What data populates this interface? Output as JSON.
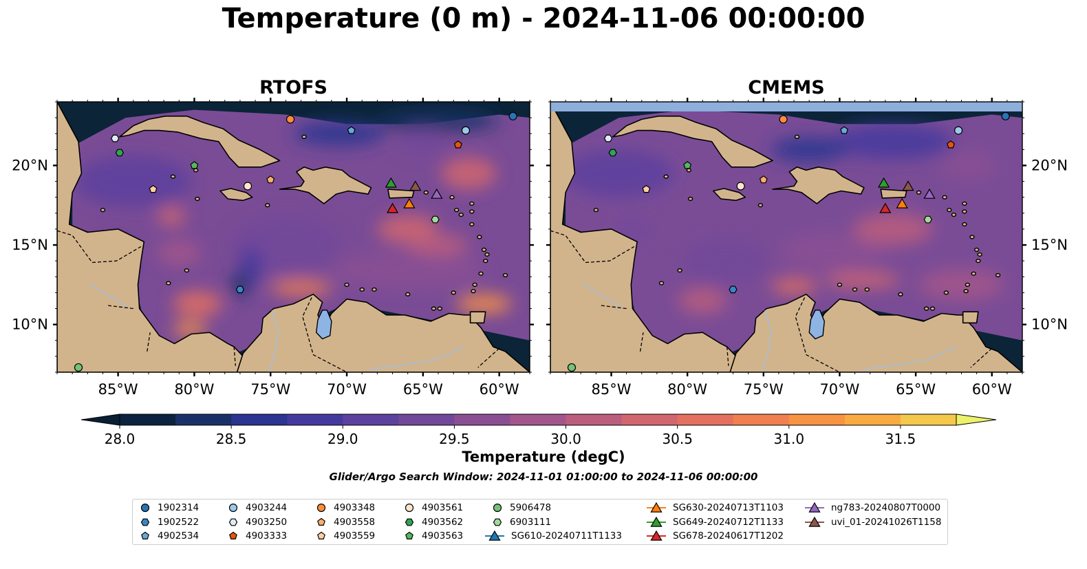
{
  "title": "Temperature (0 m) - 2024-11-06 00:00:00",
  "panels": [
    {
      "name": "RTOFS",
      "variant": "rtofs"
    },
    {
      "name": "CMEMS",
      "variant": "cmems"
    }
  ],
  "map_extent": {
    "lon": [
      -89,
      -58
    ],
    "lat": [
      7,
      24
    ]
  },
  "lon_ticks": [
    {
      "value": -85,
      "label": "85°W"
    },
    {
      "value": -80,
      "label": "80°W"
    },
    {
      "value": -75,
      "label": "75°W"
    },
    {
      "value": -70,
      "label": "70°W"
    },
    {
      "value": -65,
      "label": "65°W"
    },
    {
      "value": -60,
      "label": "60°W"
    }
  ],
  "lat_ticks": [
    {
      "value": 10,
      "label": "10°N"
    },
    {
      "value": 15,
      "label": "15°N"
    },
    {
      "value": 20,
      "label": "20°N"
    }
  ],
  "colorbar": {
    "label": "Temperature (degC)",
    "min": 28.0,
    "max": 31.5,
    "step": 0.25,
    "ticks": [
      "28.0",
      "28.5",
      "29.0",
      "29.5",
      "30.0",
      "30.5",
      "31.0",
      "31.5"
    ],
    "colors": [
      "#0b2340",
      "#1a3168",
      "#2c3590",
      "#443a9e",
      "#5c419e",
      "#72489a",
      "#8a4f93",
      "#a3568a",
      "#bb5e7d",
      "#d1666f",
      "#e4705f",
      "#f17f4f",
      "#f79342",
      "#f8ab3f",
      "#f4c84b"
    ],
    "under_color": "#0a1f33",
    "over_color": "#ecf26a"
  },
  "search_window": "Glider/Argo Search Window: 2024-11-01 01:00:00 to 2024-11-06 00:00:00",
  "colors": {
    "land": "#d2b48c",
    "ocean_deep": "#0b2438",
    "lake": "#8eb4e3",
    "river": "#a7bdd6",
    "no_data": "#8eaedc"
  },
  "floats": [
    {
      "id": "1902314",
      "marker": "circle",
      "color": "#2775b6",
      "lon": -59.1,
      "lat": 23.1
    },
    {
      "id": "1902522",
      "marker": "hexagon",
      "color": "#3a86c4",
      "lon": -77.0,
      "lat": 12.2
    },
    {
      "id": "4902534",
      "marker": "pentagon",
      "color": "#6aa8d8",
      "lon": -69.7,
      "lat": 22.2
    },
    {
      "id": "4903244",
      "marker": "circle",
      "color": "#9cc9e8",
      "lon": -62.2,
      "lat": 22.2
    },
    {
      "id": "4903250",
      "marker": "hexagon",
      "color": "#deebf7",
      "lon": -85.2,
      "lat": 21.7
    },
    {
      "id": "4903333",
      "marker": "pentagon",
      "color": "#e6550d",
      "lon": -62.7,
      "lat": 21.3
    },
    {
      "id": "4903348",
      "marker": "circle",
      "color": "#fd8d3c",
      "lon": -73.7,
      "lat": 22.9
    },
    {
      "id": "4903558",
      "marker": "pentagon",
      "color": "#fdae6b",
      "lon": -75.0,
      "lat": 19.1
    },
    {
      "id": "4903559",
      "marker": "pentagon",
      "color": "#fdd0a2",
      "lon": -82.7,
      "lat": 18.5
    },
    {
      "id": "4903561",
      "marker": "circle",
      "color": "#fee6ce",
      "lon": -76.5,
      "lat": 18.7
    },
    {
      "id": "4903562",
      "marker": "hexagon",
      "color": "#31a354",
      "lon": -84.9,
      "lat": 20.8
    },
    {
      "id": "4903563",
      "marker": "pentagon",
      "color": "#55b85e",
      "lon": -80.0,
      "lat": 20.0
    },
    {
      "id": "5906478",
      "marker": "circle",
      "color": "#74c476",
      "lon": -87.6,
      "lat": 7.3
    },
    {
      "id": "6903111",
      "marker": "hexagon",
      "color": "#a1d99b",
      "lon": -64.2,
      "lat": 16.6
    }
  ],
  "gliders": [
    {
      "id": "SG610-20240711T1133",
      "color": "#1f77b4",
      "lon": null,
      "lat": null
    },
    {
      "id": "SG630-20240713T1103",
      "color": "#ff7f0e",
      "lon": -65.9,
      "lat": 17.6
    },
    {
      "id": "SG649-20240712T1133",
      "color": "#2ca02c",
      "lon": -67.1,
      "lat": 18.9
    },
    {
      "id": "SG678-20240617T1202",
      "color": "#d62728",
      "lon": -67.0,
      "lat": 17.3
    },
    {
      "id": "ng783-20240807T0000",
      "color": "#9467bd",
      "lon": -64.1,
      "lat": 18.2
    },
    {
      "id": "uvi_01-20241026T1158",
      "color": "#8c564b",
      "lon": -65.5,
      "lat": 18.7
    }
  ]
}
